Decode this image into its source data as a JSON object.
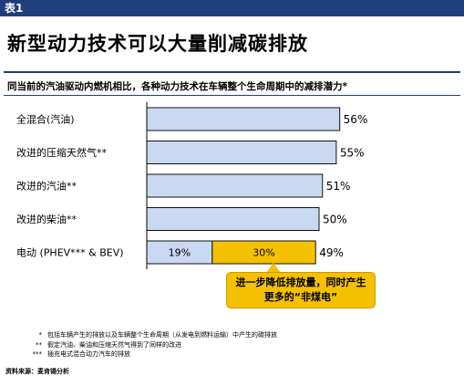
{
  "header": {
    "tag": "表1"
  },
  "title": "新型动力技术可以大量削减碳排放",
  "subtitle": "同当前的汽油驱动内燃机相比，各种动力技术在车辆整个生命周期中的减排潜力*",
  "colors": {
    "bar": "#c9d9f2",
    "bar_stroke": "#111111",
    "highlight": "#f4c000",
    "accent": "#1f3d7a"
  },
  "chart_data": {
    "type": "bar",
    "orientation": "horizontal",
    "stacked_last_row": true,
    "categories": [
      "全混合(汽油)",
      "改进的压缩天然气**",
      "改进的汽油**",
      "改进的柴油**",
      "电动 (PHEV*** & BEV)"
    ],
    "values": [
      56,
      55,
      51,
      50,
      49
    ],
    "value_labels": [
      "56%",
      "55%",
      "51%",
      "50%",
      "49%"
    ],
    "segments_last": [
      {
        "value": 19,
        "label": "19%",
        "color": "#c9d9f2"
      },
      {
        "value": 30,
        "label": "30%",
        "color": "#f4c000"
      }
    ],
    "xlim": [
      0,
      60
    ],
    "grid": false,
    "legend": "none"
  },
  "callout": {
    "text": "进一步降低排放量，同时产生更多的“非煤电”"
  },
  "footnotes": [
    {
      "mark": "*",
      "text": "包括车辆产生的排放以及车辆整个生命周期（从发电到燃料运输）中产生的碳排放"
    },
    {
      "mark": "**",
      "text": "假定汽油、柴油和压缩天然气得到了同样的改进"
    },
    {
      "mark": "***",
      "text": "插充电式混合动力汽车的排放"
    }
  ],
  "source": "资料来源：麦肯锡分析"
}
